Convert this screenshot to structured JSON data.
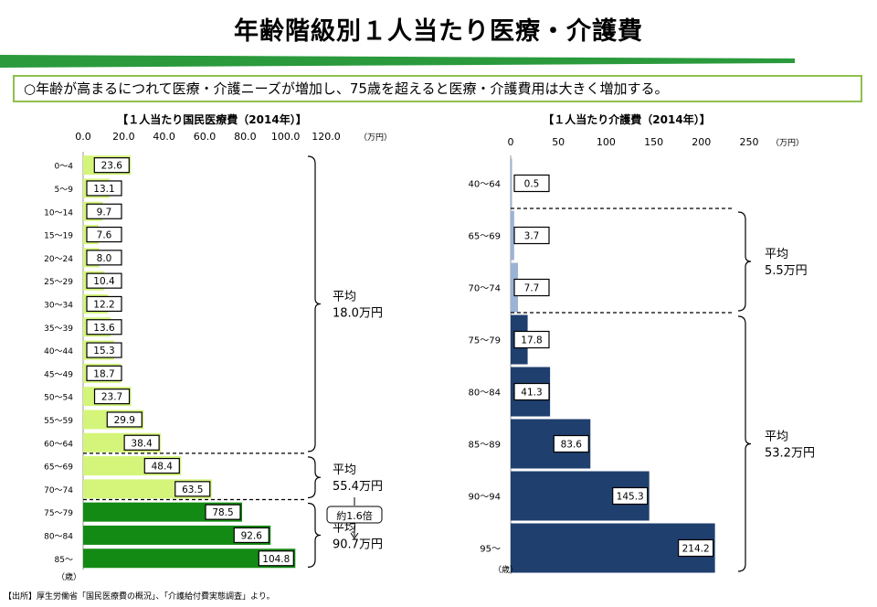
{
  "page": {
    "title": "年齢階級別１人当たり医療・介護費",
    "summary": "○年齢が高まるにつれて医療・介護ニーズが増加し、75歳を超えると医療・介護費用は大きく増加する。",
    "source": "【出所】厚生労働省「国民医療費の概況」、「介護給付費実態調査」より。",
    "colors": {
      "band": "#2a9a3c",
      "summary_border": "#8fbf4c"
    }
  },
  "chart_data": [
    {
      "type": "bar",
      "orientation": "horizontal",
      "title": "【１人当たり国民医療費（2014年）】",
      "unit_label": "（万円）",
      "age_unit": "（歳）",
      "xlim": [
        0,
        120
      ],
      "ticks": [
        "0.0",
        "20.0",
        "40.0",
        "60.0",
        "80.0",
        "100.0",
        "120.0"
      ],
      "tick_values": [
        0,
        20,
        40,
        60,
        80,
        100,
        120
      ],
      "categories": [
        "0～4",
        "5～9",
        "10～14",
        "15～19",
        "20～24",
        "25～29",
        "30～34",
        "35～39",
        "40～44",
        "45～49",
        "50～54",
        "55～59",
        "60～64",
        "65～69",
        "70～74",
        "75～79",
        "80～84",
        "85～"
      ],
      "values": [
        23.6,
        13.1,
        9.7,
        7.6,
        8.0,
        10.4,
        12.2,
        13.6,
        15.3,
        18.7,
        23.7,
        29.9,
        38.4,
        48.4,
        63.5,
        78.5,
        92.6,
        104.8
      ],
      "labels": [
        "23.6",
        "13.1",
        "9.7",
        "7.6",
        "8.0",
        "10.4",
        "12.2",
        "13.6",
        "15.3",
        "18.7",
        "23.7",
        "29.9",
        "38.4",
        "48.4",
        "63.5",
        "78.5",
        "92.6",
        "104.8"
      ],
      "bar_colors": [
        "#d4f57a",
        "#d4f57a",
        "#d4f57a",
        "#d4f57a",
        "#d4f57a",
        "#d4f57a",
        "#d4f57a",
        "#d4f57a",
        "#d4f57a",
        "#d4f57a",
        "#d4f57a",
        "#d4f57a",
        "#d4f57a",
        "#d4f57a",
        "#d4f57a",
        "#138a13",
        "#138a13",
        "#138a13"
      ],
      "groups": [
        {
          "from": 0,
          "to": 12,
          "lines": [
            "平均",
            "18.0万円"
          ]
        },
        {
          "from": 13,
          "to": 14,
          "lines": [
            "平均",
            "55.4万円"
          ]
        },
        {
          "from": 15,
          "to": 17,
          "lines": [
            "平均",
            "90.7万円"
          ]
        }
      ],
      "ratio_label": "約1.6倍"
    },
    {
      "type": "bar",
      "orientation": "horizontal",
      "title": "【１人当たり介護費（2014年）】",
      "unit_label": "（万円）",
      "age_unit": "（歳）",
      "xlim": [
        0,
        250
      ],
      "ticks": [
        "0",
        "50",
        "100",
        "150",
        "200",
        "250"
      ],
      "tick_values": [
        0,
        50,
        100,
        150,
        200,
        250
      ],
      "categories": [
        "40～64",
        "65～69",
        "70～74",
        "75～79",
        "80～84",
        "85～89",
        "90～94",
        "95～"
      ],
      "values": [
        0.5,
        3.7,
        7.7,
        17.8,
        41.3,
        83.6,
        145.3,
        214.2
      ],
      "labels": [
        "0.5",
        "3.7",
        "7.7",
        "17.8",
        "41.3",
        "83.6",
        "145.3",
        "214.2"
      ],
      "bar_colors": [
        "#9ab3d6",
        "#9ab3d6",
        "#9ab3d6",
        "#1f3f6e",
        "#1f3f6e",
        "#1f3f6e",
        "#1f3f6e",
        "#1f3f6e"
      ],
      "groups": [
        {
          "from": 1,
          "to": 2,
          "lines": [
            "平均",
            "5.5万円"
          ]
        },
        {
          "from": 3,
          "to": 7,
          "lines": [
            "平均",
            "53.2万円"
          ]
        }
      ]
    }
  ]
}
